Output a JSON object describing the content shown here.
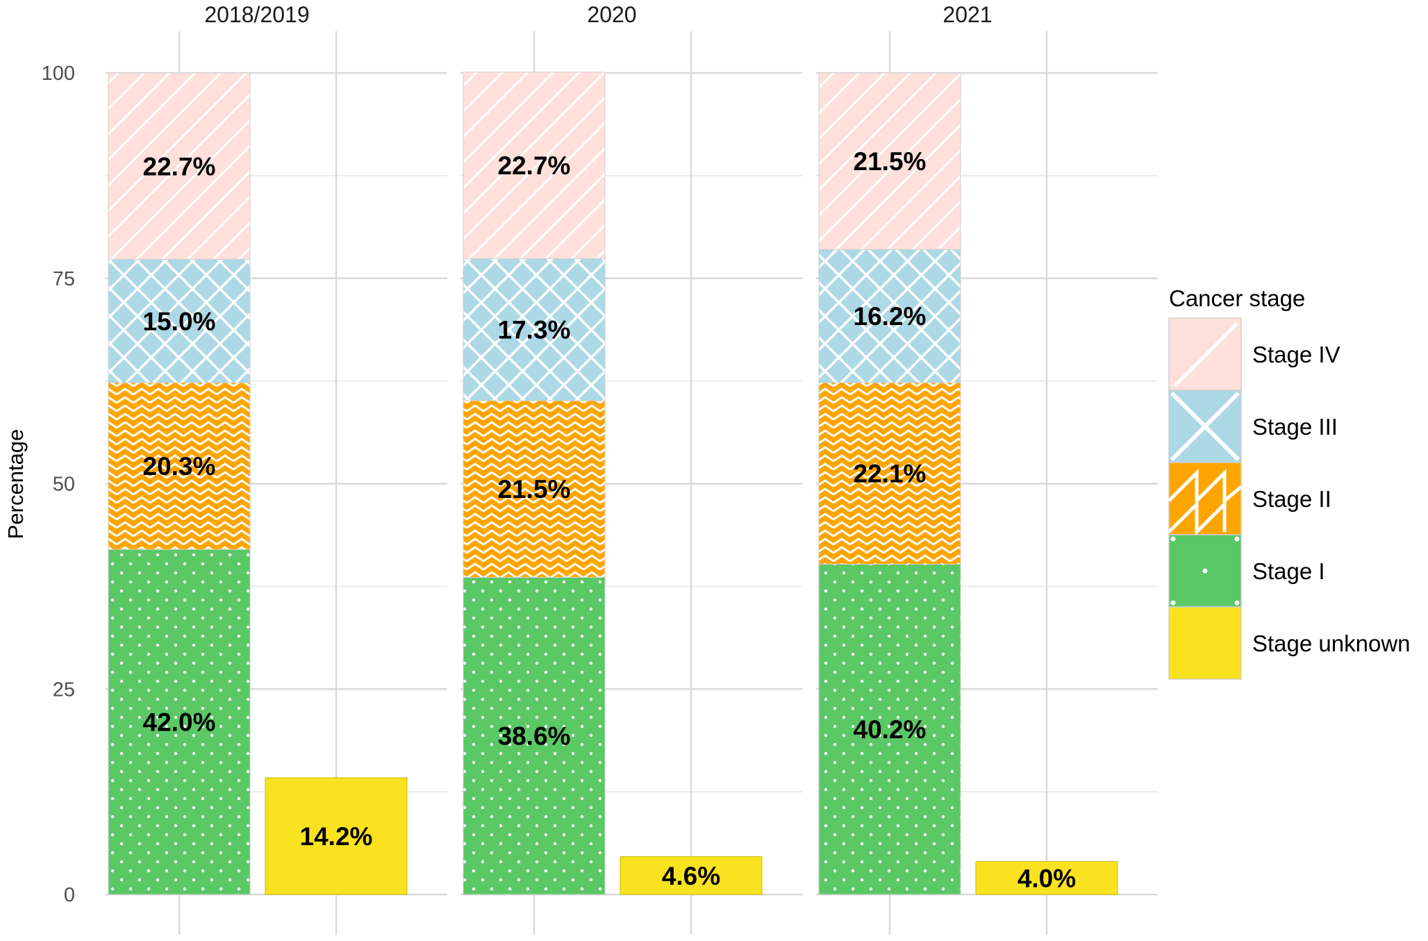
{
  "chart_data": {
    "type": "bar",
    "stacked": true,
    "facets": [
      "2018/2019",
      "2020",
      "2021"
    ],
    "ylabel": "Percentage",
    "xlabel": "",
    "ylim": [
      0,
      100
    ],
    "yticks": [
      0,
      25,
      50,
      75,
      100
    ],
    "grid": true,
    "legend": {
      "title": "Cancer stage",
      "placement": "right",
      "entries": [
        "Stage IV",
        "Stage III",
        "Stage II",
        "Stage I",
        "Stage unknown"
      ]
    },
    "series": [
      {
        "name": "Stage I",
        "color": "#5ac864",
        "pattern": "dots",
        "values": [
          42.0,
          38.6,
          40.2
        ],
        "labels": [
          "42.0%",
          "38.6%",
          "40.2%"
        ]
      },
      {
        "name": "Stage II",
        "color": "#ffa500",
        "pattern": "zigzag",
        "values": [
          20.3,
          21.5,
          22.1
        ],
        "labels": [
          "20.3%",
          "21.5%",
          "22.1%"
        ]
      },
      {
        "name": "Stage III",
        "color": "#add8e6",
        "pattern": "crosshatch",
        "values": [
          15.0,
          17.3,
          16.2
        ],
        "labels": [
          "15.0%",
          "17.3%",
          "16.2%"
        ]
      },
      {
        "name": "Stage IV",
        "color": "#ffe0da",
        "pattern": "diagonal",
        "values": [
          22.7,
          22.7,
          21.5
        ],
        "labels": [
          "22.7%",
          "22.7%",
          "21.5%"
        ]
      }
    ],
    "unknown": {
      "name": "Stage unknown",
      "color": "#f9e320",
      "values": [
        14.2,
        4.6,
        4.0
      ],
      "labels": [
        "14.2%",
        "4.6%",
        "4.0%"
      ]
    }
  }
}
